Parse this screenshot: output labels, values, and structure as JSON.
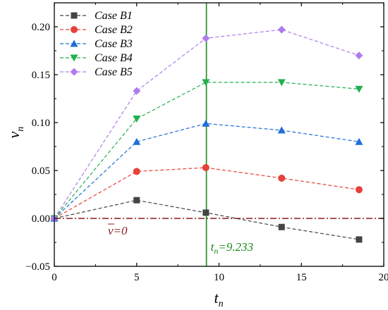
{
  "chart_data": {
    "type": "line",
    "xlabel": "t",
    "xlabel_sub": "n",
    "ylabel": "v",
    "ylabel_sub": "n",
    "xlim": [
      0,
      20
    ],
    "ylim": [
      -0.05,
      0.225
    ],
    "xticks": [
      0,
      5,
      10,
      15,
      20
    ],
    "xtick_labels": [
      "0",
      "5",
      "10",
      "15",
      "20"
    ],
    "yticks": [
      -0.05,
      0.0,
      0.05,
      0.1,
      0.15,
      0.2
    ],
    "ytick_labels": [
      "−0.05",
      "0.00",
      "0.05",
      "0.10",
      "0.15",
      "0.20"
    ],
    "grid": false,
    "legend_position": "top-left",
    "x": [
      0,
      5,
      9.2,
      13.8,
      18.5
    ],
    "series": [
      {
        "name": "Case B1",
        "color": "#444444",
        "marker": "square",
        "values": [
          0,
          0.019,
          0.006,
          -0.009,
          -0.022
        ]
      },
      {
        "name": "Case B2",
        "color": "#e8403a",
        "marker": "circle",
        "values": [
          0,
          0.049,
          0.053,
          0.042,
          0.03
        ]
      },
      {
        "name": "Case B3",
        "color": "#1f6fd6",
        "marker": "triangle-up",
        "values": [
          0,
          0.08,
          0.099,
          0.092,
          0.08
        ]
      },
      {
        "name": "Case B4",
        "color": "#22b04c",
        "marker": "triangle-down",
        "values": [
          0,
          0.104,
          0.142,
          0.142,
          0.135
        ]
      },
      {
        "name": "Case B5",
        "color": "#b07cec",
        "marker": "diamond",
        "values": [
          0,
          0.133,
          0.188,
          0.197,
          0.17
        ]
      }
    ],
    "reference_lines": [
      {
        "orientation": "horizontal",
        "value": 0,
        "color": "#8b1a1a",
        "label": "v=0",
        "label_bar": "v",
        "label_rest": "=0"
      },
      {
        "orientation": "vertical",
        "value": 9.233,
        "color": "#1a8a1a",
        "label_main": "t",
        "label_sub": "n",
        "label_rest": "=9.233"
      }
    ]
  }
}
